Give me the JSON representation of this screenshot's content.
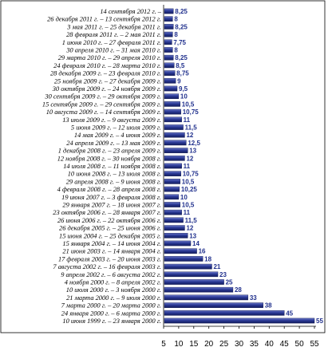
{
  "chart_data": {
    "type": "bar",
    "orientation": "horizontal",
    "title": "",
    "xlabel": "",
    "ylabel": "",
    "xlim": [
      5,
      55
    ],
    "xticks": [
      "5",
      "10",
      "15",
      "20",
      "25",
      "30",
      "35",
      "40",
      "45",
      "50",
      "55"
    ],
    "grid": false,
    "legend": "none",
    "bar_color": "#1f2f8c",
    "label_color": "#1f2f8c",
    "categories": [
      "14 сентября 2012 г. –",
      "26 декабря 2011 г. – 13 сентября 2012 г.",
      "3 мая 2011 г. – 25 декабря 2011 г.",
      "28 февраля 2011 г. – 2 мая 2011 г.",
      "1 июня 2010 г. – 27 февраля 2011 г.",
      "30 апреля 2010 г. – 31 мая 2010 г.",
      "29 марта 2010 г. – 29 апреля 2010 г.",
      "24 февраля 2010 г. – 28 марта 2010 г.",
      "28 декабря 2009 г. – 23 февраля 2010 г.",
      "25 ноября 2009 г. – 27 декабря 2009 г.",
      "30 октября 2009 г. – 24 ноября 2009 г.",
      "30 сентября 2009 г. – 29 октября 2009 г.",
      "15 сентября 2009 г. – 29 сентября 2009 г.",
      "10 августа 2009 г. – 14 сентября 2009 г.",
      "13 июля 2009 г. – 9 августа 2009 г.",
      "5 июня 2009 г. – 12 июля 2009 г.",
      "14 мая 2009 г. – 4 июня 2009 г.",
      "24 апреля 2009 г. – 13 мая 2009 г.",
      "1 декабря 2008 г. – 23 апреля 2009 г.",
      "12 ноября 2008 г. – 30 ноября 2008 г.",
      "14 июля 2008 г. – 11 ноября 2008 г.",
      "10 июня 2008 г. – 13 июля 2008 г.",
      "29 апреля 2008 г. – 9 июня 2008 г.",
      "4 февраля 2008 г. – 28 апреля 2008 г.",
      "19 июня 2007 г. – 3 февраля 2008 г.",
      "29 января 2007 г. – 18 июня 2007 г.",
      "23 октября 2006 г. – 28 января 2007 г.",
      "26 июня 2006 г. – 22 октября 2006 г.",
      "26 декабря 2005 г. – 25 июня 2006 г.",
      "15 июня 2004 г. – 25 декабря 2005 г.",
      "15 января 2004 г. – 14 июня 2004 г.",
      "21 июня 2003 г. – 14 января 2004 г.",
      "17 февраля 2003 г. – 20 июня 2003 г.",
      "7 августа 2002 г. – 16 февраля 2003 г.",
      "9 апреля 2002 г. – 6 августа 2002 г.",
      "4 ноября 2000 г. – 8 апреля 2002 г.",
      "10 июля 2000 г. – 3 ноября 2000 г.",
      "21 марта 2000 г. – 9 июля 2000 г.",
      "7 марта 2000 г. – 20 марта 2000 г.",
      "24 января 2000 г. – 6 марта 2000 г.",
      "10 июня 1999 г. – 23 января 2000 г."
    ],
    "values": [
      8.25,
      8,
      8.25,
      8,
      7.75,
      8,
      8.25,
      8.5,
      8.75,
      9,
      9.5,
      10,
      10.5,
      10.75,
      11,
      11.5,
      12,
      12.5,
      13,
      12,
      11,
      10.75,
      10.5,
      10.25,
      10,
      10.5,
      11,
      11.5,
      12,
      13,
      14,
      16,
      18,
      21,
      23,
      25,
      28,
      33,
      38,
      45,
      55
    ],
    "value_labels": [
      "8,25",
      "8",
      "8,25",
      "8",
      "7,75",
      "8",
      "8,25",
      "8,5",
      "8,75",
      "9",
      "9,5",
      "10",
      "10,5",
      "10,75",
      "11",
      "11,5",
      "12",
      "12,5",
      "13",
      "12",
      "11",
      "10,75",
      "10,5",
      "10,25",
      "10",
      "10,5",
      "11",
      "11,5",
      "12",
      "13",
      "14",
      "16",
      "18",
      "21",
      "23",
      "25",
      "28",
      "33",
      "38",
      "45",
      "55"
    ]
  }
}
